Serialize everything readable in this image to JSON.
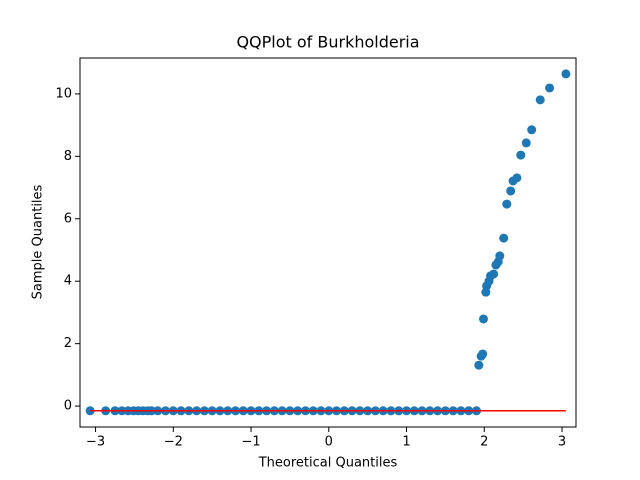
{
  "chart_data": {
    "type": "scatter",
    "title": "QQPlot of Burkholderia",
    "xlabel": "Theoretical Quantiles",
    "ylabel": "Sample Quantiles",
    "color": "#1f77b4",
    "x": [
      -3.07,
      -2.87,
      -2.75,
      -2.66,
      -2.58,
      -2.51,
      -2.45,
      -2.39,
      -2.33,
      -2.28,
      -2.2,
      -2.1,
      -2.0,
      -1.9,
      -1.8,
      -1.7,
      -1.6,
      -1.5,
      -1.4,
      -1.3,
      -1.2,
      -1.1,
      -1.0,
      -0.9,
      -0.8,
      -0.7,
      -0.6,
      -0.5,
      -0.4,
      -0.3,
      -0.2,
      -0.1,
      0.0,
      0.1,
      0.2,
      0.3,
      0.4,
      0.5,
      0.6,
      0.7,
      0.8,
      0.9,
      1.0,
      1.1,
      1.2,
      1.3,
      1.4,
      1.5,
      1.6,
      1.7,
      1.8,
      1.9,
      1.93,
      1.96,
      1.98,
      1.99,
      2.02,
      2.03,
      2.06,
      2.08,
      2.12,
      2.15,
      2.18,
      2.2,
      2.25,
      2.29,
      2.34,
      2.37,
      2.42,
      2.47,
      2.54,
      2.61,
      2.72,
      2.84,
      3.05
    ],
    "values": [
      -0.15,
      -0.15,
      -0.15,
      -0.15,
      -0.15,
      -0.15,
      -0.15,
      -0.15,
      -0.15,
      -0.15,
      -0.15,
      -0.15,
      -0.15,
      -0.15,
      -0.15,
      -0.15,
      -0.15,
      -0.15,
      -0.15,
      -0.15,
      -0.15,
      -0.15,
      -0.15,
      -0.15,
      -0.15,
      -0.15,
      -0.15,
      -0.15,
      -0.15,
      -0.15,
      -0.15,
      -0.15,
      -0.15,
      -0.15,
      -0.15,
      -0.15,
      -0.15,
      -0.15,
      -0.15,
      -0.15,
      -0.15,
      -0.15,
      -0.15,
      -0.15,
      -0.15,
      -0.15,
      -0.15,
      -0.15,
      -0.15,
      -0.15,
      -0.15,
      -0.15,
      1.31,
      1.6,
      1.67,
      2.79,
      3.65,
      3.85,
      4.0,
      4.17,
      4.23,
      4.52,
      4.62,
      4.81,
      5.38,
      6.47,
      6.89,
      7.21,
      7.31,
      8.04,
      8.43,
      8.85,
      9.81,
      10.19,
      10.64
    ],
    "fit_line": {
      "x": [
        -3.07,
        3.05
      ],
      "y": [
        -0.15,
        -0.15
      ],
      "color": "#ff0000"
    },
    "xlim": [
      -3.2,
      3.18
    ],
    "ylim": [
      -0.67,
      11.15
    ],
    "xticks": [
      {
        "value": -3,
        "label": "−3"
      },
      {
        "value": -2,
        "label": "−2"
      },
      {
        "value": -1,
        "label": "−1"
      },
      0,
      1,
      2,
      3
    ],
    "yticks": [
      0,
      2,
      4,
      6,
      8,
      10
    ]
  }
}
